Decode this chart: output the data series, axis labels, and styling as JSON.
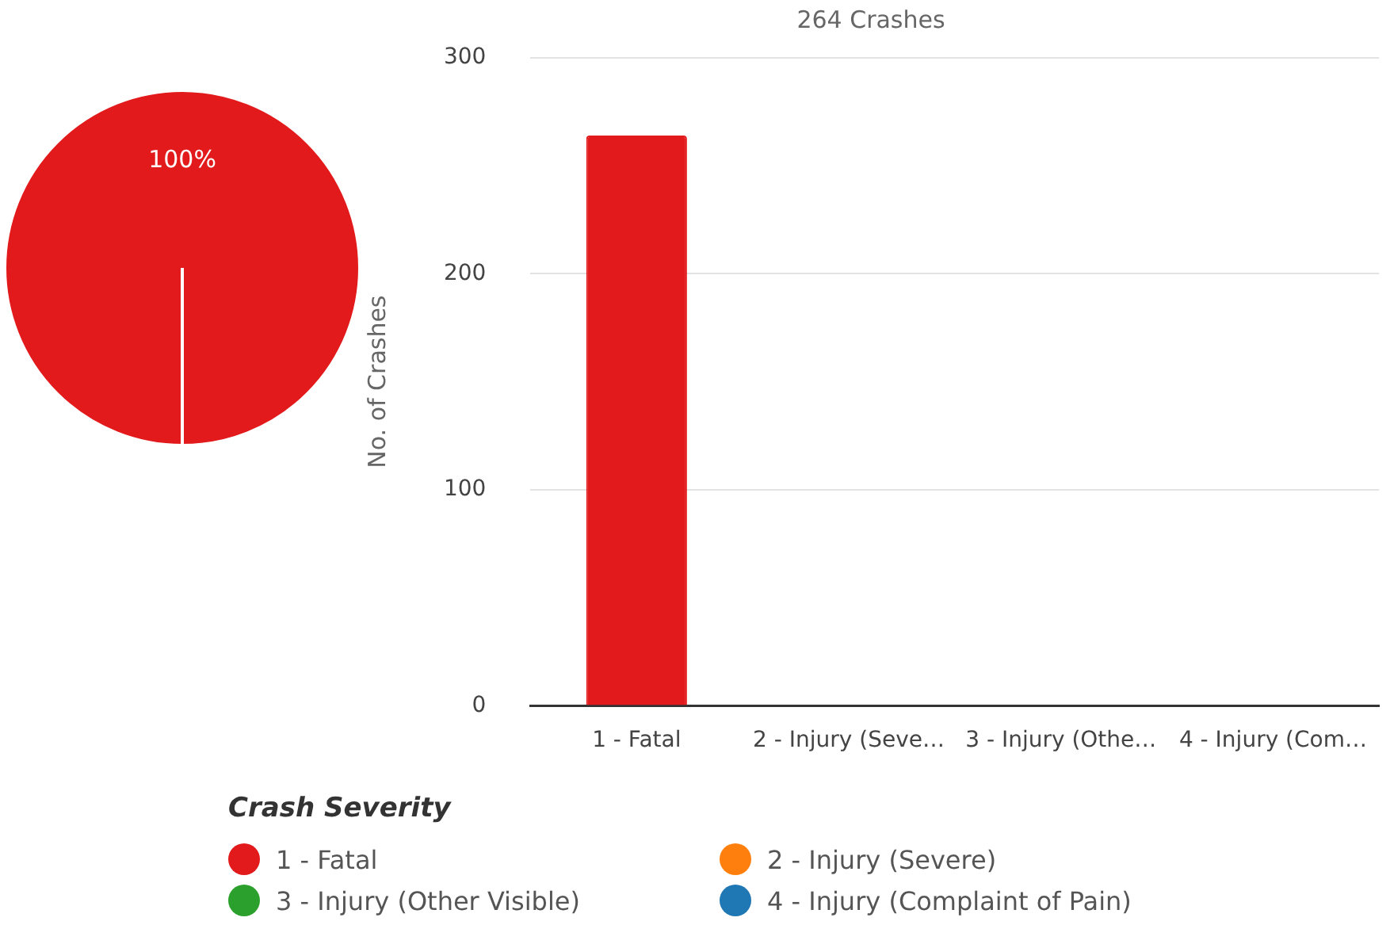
{
  "chart_data": [
    {
      "type": "pie",
      "categories": [
        "1 - Fatal",
        "2 - Injury (Severe)",
        "3 - Injury (Other Visible)",
        "4 - Injury (Complaint of Pain)"
      ],
      "values": [
        100,
        0,
        0,
        0
      ],
      "colors": [
        "#e31a1c",
        "#ff7f0e",
        "#2ca02c",
        "#1f77b4"
      ],
      "value_labels": [
        "100%",
        null,
        null,
        null
      ],
      "legend": "bottom",
      "legend_title": "Crash Severity"
    },
    {
      "type": "bar",
      "title": "264 Crashes",
      "ylabel": "No. of Crashes",
      "categories": [
        "1 - Fatal",
        "2 - Injury (Seve…",
        "3 - Injury (Othe…",
        "4 - Injury (Com…"
      ],
      "values": [
        264,
        0,
        0,
        0
      ],
      "colors": [
        "#e31a1c",
        "#ff7f0e",
        "#2ca02c",
        "#1f77b4"
      ],
      "ylim": [
        0,
        300
      ],
      "yticks": [
        0,
        100,
        200,
        300
      ],
      "grid": "y"
    }
  ]
}
